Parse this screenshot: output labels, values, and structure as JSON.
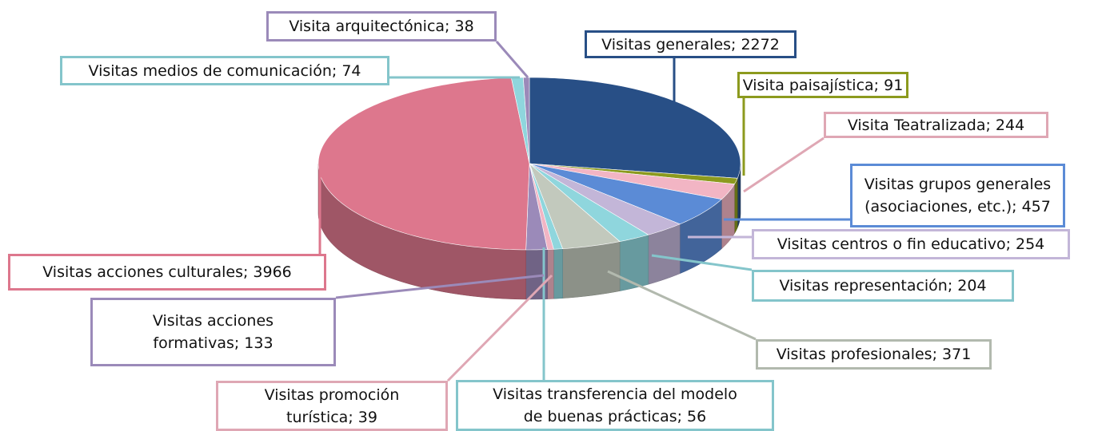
{
  "chart_data": {
    "type": "pie",
    "value_labels": [
      "Visitas generales; 2272",
      "Visita paisajística; 91",
      "Visita Teatralizada; 244",
      "Visitas grupos generales\n(asociaciones, etc.); 457",
      "Visitas centros o fin educativo; 254",
      "Visitas representación; 204",
      "Visitas profesionales; 371",
      "Visitas transferencia del modelo\nde buenas prácticas; 56",
      "Visitas promoción\nturística; 39",
      "Visitas acciones\nformativas; 133",
      "Visitas acciones culturales; 3966",
      "Visitas medios de comunicación; 74",
      "Visita arquitectónica; 38"
    ],
    "values": [
      2272,
      91,
      244,
      457,
      254,
      204,
      371,
      56,
      39,
      133,
      3966,
      74,
      38
    ],
    "colors": [
      "#284f86",
      "#8c9a1e",
      "#f2b5c4",
      "#5b8bd6",
      "#c3b6d8",
      "#8fd6dd",
      "#c2c9bd",
      "#8fd6dd",
      "#f2b5c4",
      "#9b8ab9",
      "#dd778d",
      "#8fd6dd",
      "#9b8ab9"
    ]
  }
}
